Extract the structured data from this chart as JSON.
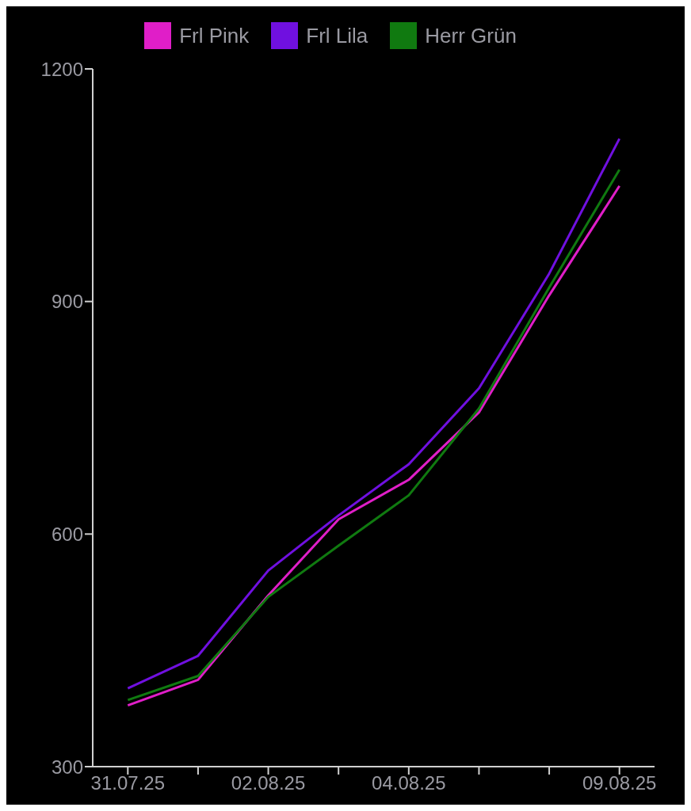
{
  "chart_data": {
    "type": "line",
    "categories": [
      "31.07.25",
      null,
      "02.08.25",
      null,
      "04.08.25",
      null,
      null,
      "09.08.25"
    ],
    "series": [
      {
        "name": "Frl Pink",
        "color": "#e01ec8",
        "values": [
          379,
          412,
          521,
          619,
          670,
          757,
          908,
          1049
        ]
      },
      {
        "name": "Frl Lila",
        "color": "#7010e0",
        "values": [
          401,
          443,
          553,
          624,
          690,
          788,
          936,
          1110
        ]
      },
      {
        "name": "Herr Grün",
        "color": "#107a10",
        "values": [
          386,
          417,
          519,
          585,
          650,
          762,
          918,
          1070
        ]
      }
    ],
    "ylim": [
      300,
      1200
    ],
    "yticks": [
      300,
      600,
      900,
      1200
    ],
    "grid": false,
    "legend": "top",
    "marker": "none",
    "line_style": "solid"
  }
}
